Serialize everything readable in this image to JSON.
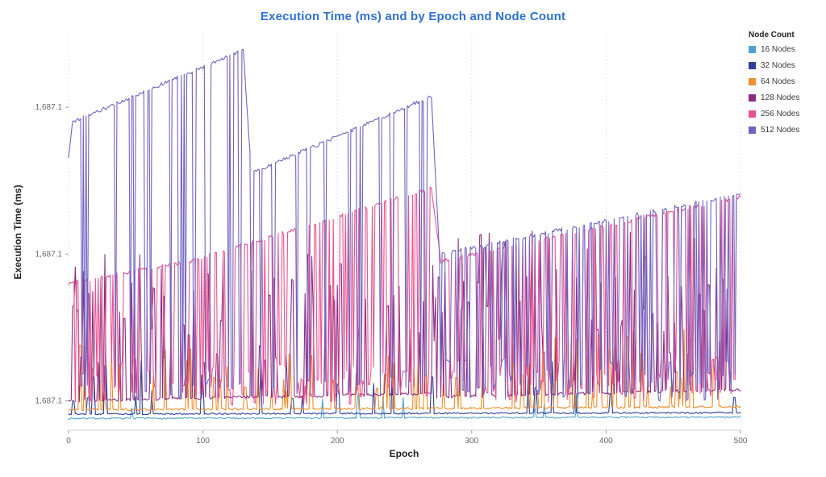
{
  "page": {
    "background": "#ffffff"
  },
  "chart_data": {
    "type": "line",
    "title": "Execution Time (ms) and by Epoch and Node Count",
    "title_color": "#2E70D6",
    "xlabel": "Epoch",
    "ylabel": "Execution Time (ms)",
    "xlim": [
      0,
      500
    ],
    "ylim": [
      1687.076,
      1687.13
    ],
    "x_ticks": [
      0,
      100,
      200,
      300,
      400,
      500
    ],
    "y_ticks": [
      {
        "value": 1687.08,
        "label": "1,687.1"
      },
      {
        "value": 1687.1,
        "label": "1,687.1"
      },
      {
        "value": 1687.12,
        "label": "1,687.1"
      }
    ],
    "grid": "vertical-dotted",
    "legend": {
      "title": "Node Count",
      "position": "top-right"
    },
    "series": [
      {
        "name": "16 Nodes",
        "color": "#4FA3CE",
        "seed": 7,
        "noise": 0.0002,
        "segments": [
          {
            "x0": 0,
            "x1": 500,
            "v0": 1687.0776,
            "v1": 1687.0778,
            "spike_rate": 0.02,
            "spike_lo": 1687.079,
            "spike_hi": 1687.0815
          }
        ]
      },
      {
        "name": "32 Nodes",
        "color": "#2F3D9B",
        "seed": 13,
        "noise": 0.0002,
        "segments": [
          {
            "x0": 0,
            "x1": 500,
            "v0": 1687.0782,
            "v1": 1687.0784,
            "spike_rate": 0.06,
            "spike_lo": 1687.08,
            "spike_hi": 1687.0862
          }
        ]
      },
      {
        "name": "64 Nodes",
        "color": "#F28E2B",
        "seed": 21,
        "noise": 0.0003,
        "segments": [
          {
            "x0": 0,
            "x1": 300,
            "v0": 1687.0788,
            "v1": 1687.079,
            "spike_rate": 0.15,
            "spike_lo": 1687.081,
            "spike_hi": 1687.0882
          },
          {
            "x0": 300,
            "x1": 500,
            "v0": 1687.079,
            "v1": 1687.0792,
            "spike_rate": 0.2,
            "spike_lo": 1687.081,
            "spike_hi": 1687.0905
          }
        ]
      },
      {
        "name": "128 Nodes",
        "color": "#8C2D84",
        "seed": 42,
        "noise": 0.0004,
        "segments": [
          {
            "x0": 0,
            "x1": 270,
            "v0": 1687.08,
            "v1": 1687.081,
            "spike_rate": 0.28,
            "spike_lo": 1687.085,
            "spike_hi": 1687.1
          },
          {
            "x0": 270,
            "x1": 500,
            "v0": 1687.0805,
            "v1": 1687.0815,
            "spike_rate": 0.33,
            "spike_lo": 1687.086,
            "spike_hi": 1687.1035
          }
        ]
      },
      {
        "name": "256 Nodes",
        "color": "#E8538F",
        "seed": 101,
        "noise": 0.0005,
        "segments": [
          {
            "x0": 0,
            "x1": 90,
            "v0": 1687.096,
            "v1": 1687.099,
            "spike_rate": 0.32,
            "spike_lo": 1687.0794,
            "spike_hi": 1687.086
          },
          {
            "x0": 90,
            "x1": 270,
            "v0": 1687.099,
            "v1": 1687.109,
            "spike_rate": 0.36,
            "spike_lo": 1687.0794,
            "spike_hi": 1687.085
          },
          {
            "x0": 270,
            "x1": 277,
            "v0": 1687.109,
            "v1": 1687.099,
            "spike_rate": 0.1,
            "spike_lo": 1687.08,
            "spike_hi": 1687.085
          },
          {
            "x0": 277,
            "x1": 500,
            "v0": 1687.099,
            "v1": 1687.1078,
            "spike_rate": 0.42,
            "spike_lo": 1687.0797,
            "spike_hi": 1687.086
          }
        ]
      },
      {
        "name": "512 Nodes",
        "color": "#6F64C2",
        "seed": 2024,
        "noise": 0.0005,
        "segments": [
          {
            "x0": 0,
            "x1": 3,
            "v0": 1687.113,
            "v1": 1687.118,
            "spike_rate": 0.3,
            "spike_lo": 1687.0805,
            "spike_hi": 1687.083
          },
          {
            "x0": 3,
            "x1": 130,
            "v0": 1687.118,
            "v1": 1687.1278,
            "spike_rate": 0.17,
            "spike_lo": 1687.0805,
            "spike_hi": 1687.083
          },
          {
            "x0": 130,
            "x1": 136,
            "v0": 1687.1278,
            "v1": 1687.111,
            "spike_rate": 0.05,
            "spike_lo": 1687.0805,
            "spike_hi": 1687.083
          },
          {
            "x0": 136,
            "x1": 270,
            "v0": 1687.111,
            "v1": 1687.1215,
            "spike_rate": 0.14,
            "spike_lo": 1687.0808,
            "spike_hi": 1687.0835
          },
          {
            "x0": 270,
            "x1": 276,
            "v0": 1687.1215,
            "v1": 1687.1,
            "spike_rate": 0.05,
            "spike_lo": 1687.0805,
            "spike_hi": 1687.0835
          },
          {
            "x0": 276,
            "x1": 500,
            "v0": 1687.1,
            "v1": 1687.1082,
            "spike_rate": 0.4,
            "spike_lo": 1687.08,
            "spike_hi": 1687.086
          }
        ]
      }
    ]
  }
}
